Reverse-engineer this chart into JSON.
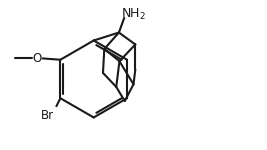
{
  "bg_color": "#ffffff",
  "line_color": "#1a1a1a",
  "line_width": 1.5,
  "font_size_label": 8.5,
  "lw": 1.5
}
